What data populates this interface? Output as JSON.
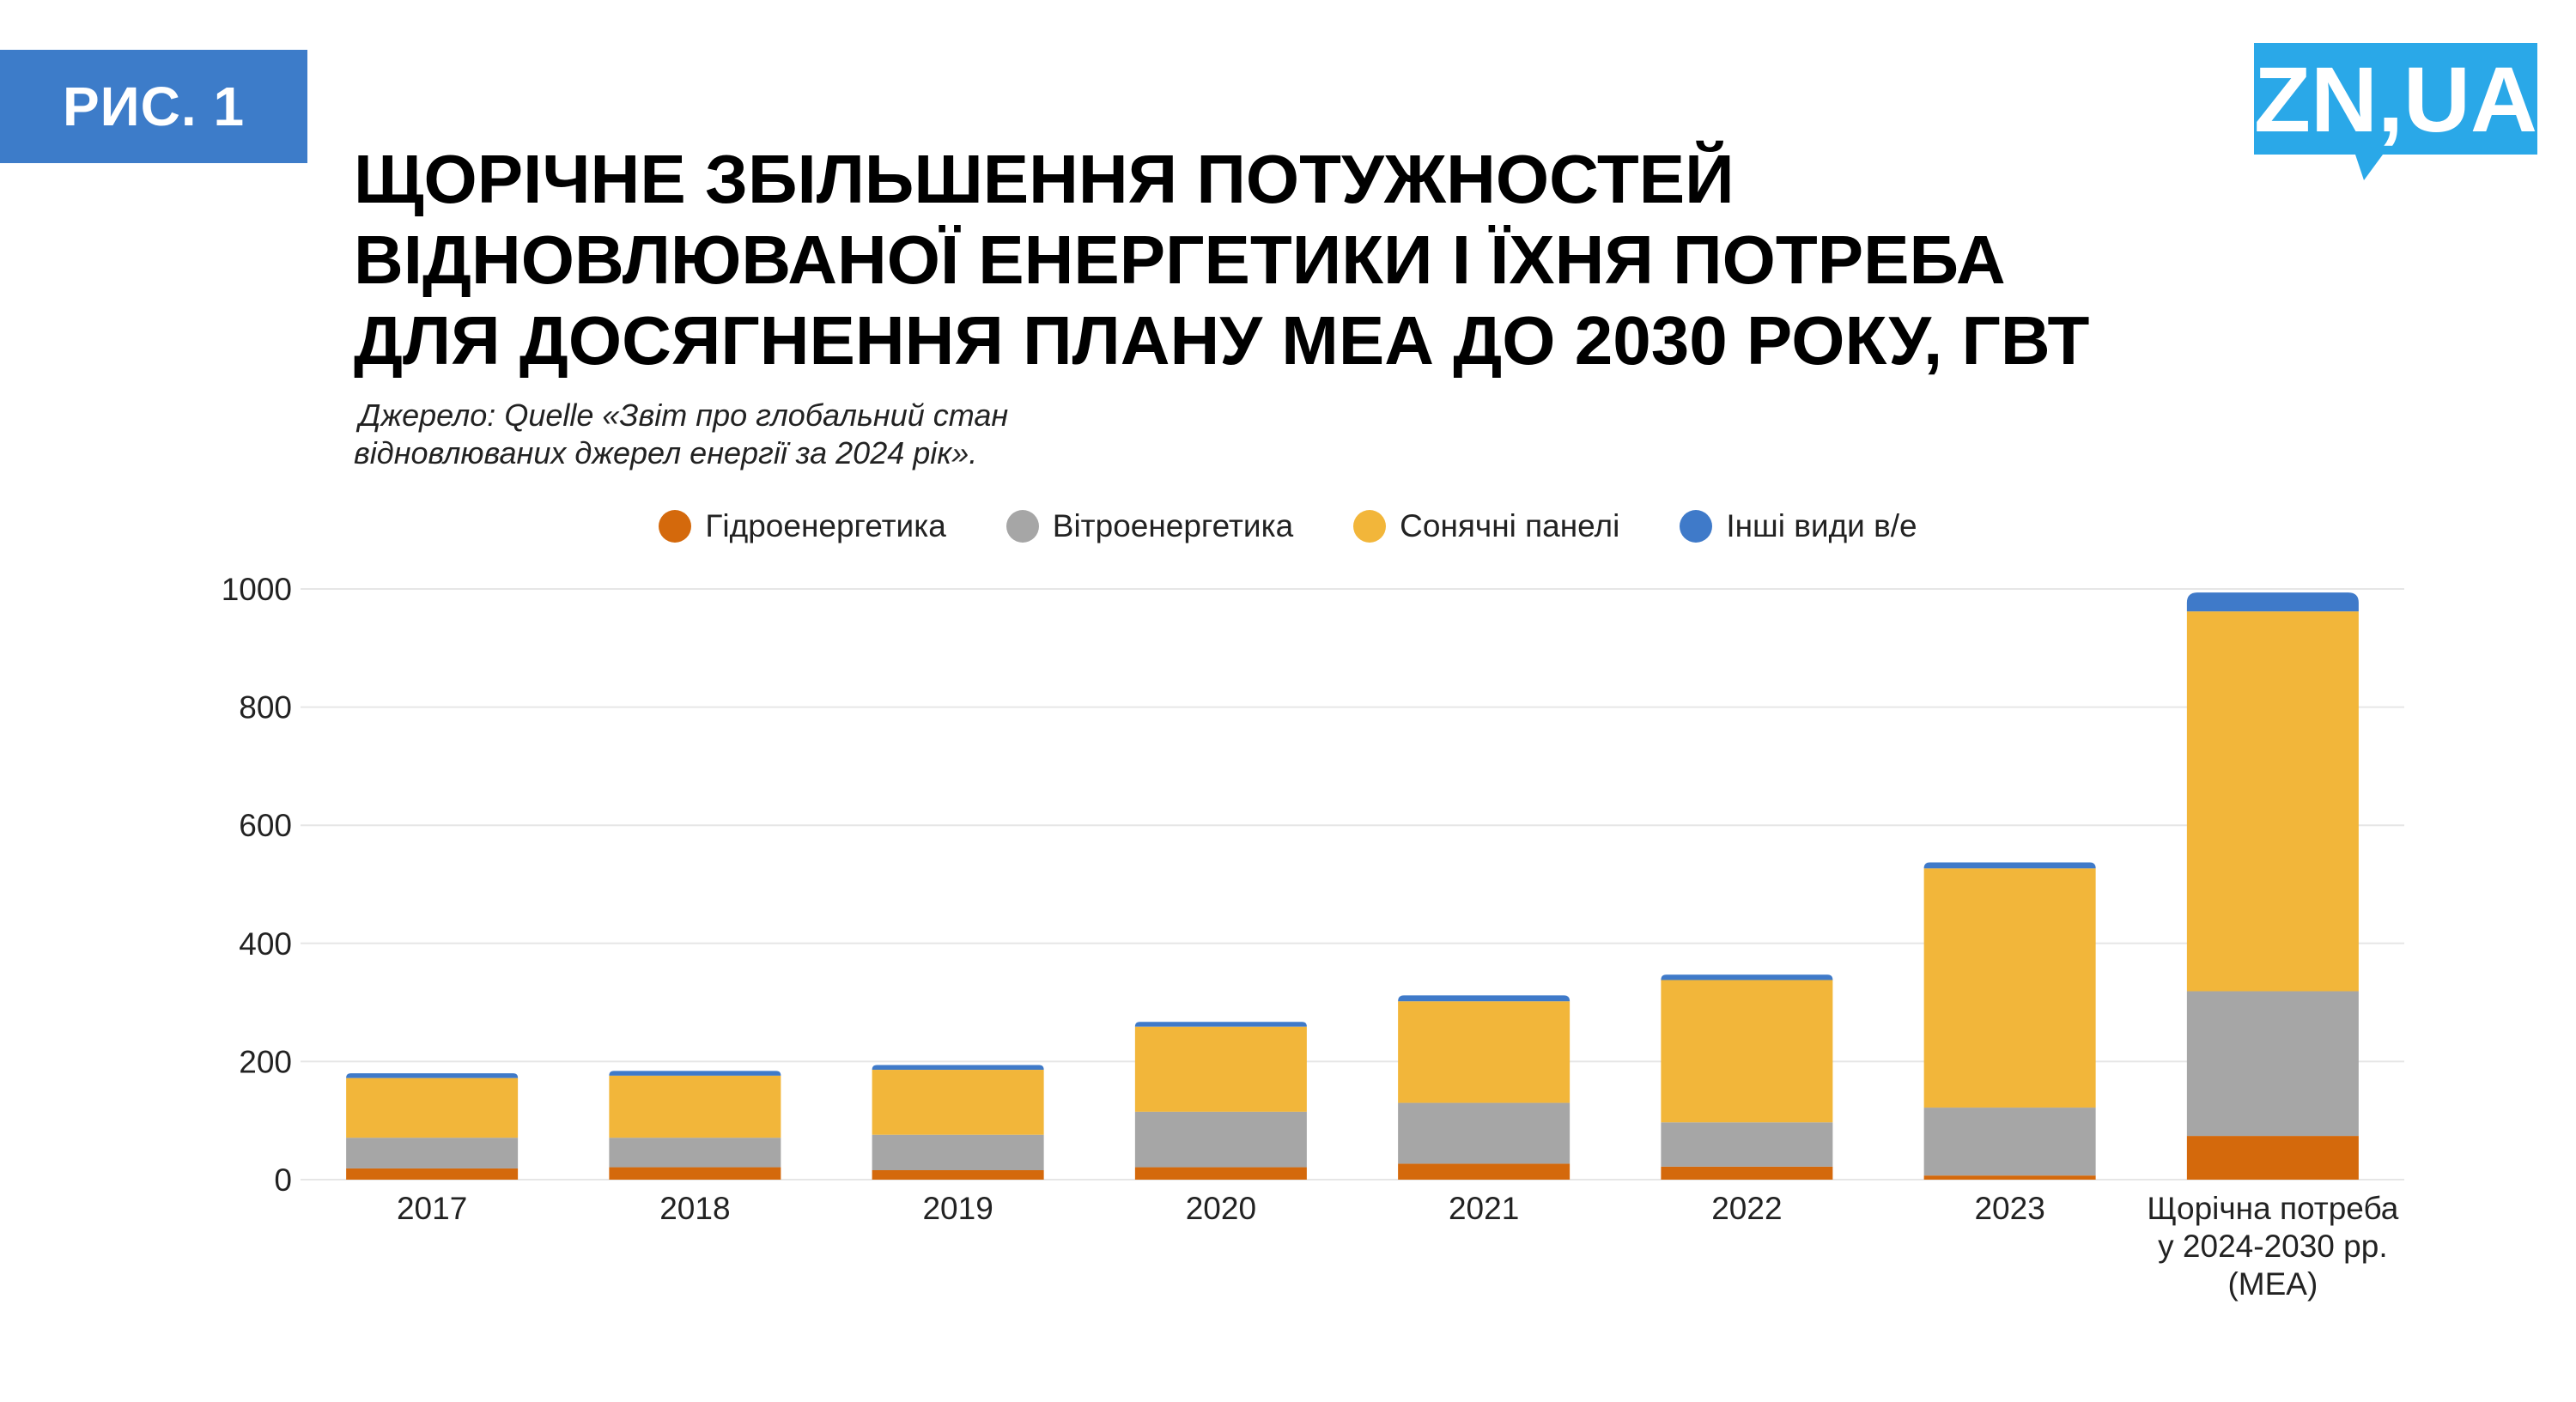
{
  "badge": "РИС. 1",
  "logo": {
    "text": "ZN,UA",
    "color": "#2aa8e8"
  },
  "title": {
    "line1": "ЩОРІЧНЕ ЗБІЛЬШЕННЯ ПОТУЖНОСТЕЙ",
    "line2": "ВІДНОВЛЮВАНОЇ ЕНЕРГЕТИКИ І ЇХНЯ ПОТРЕБА",
    "line3": "ДЛЯ ДОСЯГНЕННЯ ПЛАНУ МЕА ДО 2030 РОКУ, ГВТ"
  },
  "source": {
    "line1": "Джерело: Quelle «Звіт про глобальний стан",
    "line2": "відновлюваних джерел енергії за 2024 рік»."
  },
  "chart_data": {
    "type": "bar",
    "stacked": true,
    "categories": [
      "2017",
      "2018",
      "2019",
      "2020",
      "2021",
      "2022",
      "2023",
      "Щорічна потреба у 2024-2030 рр. (МЕА)"
    ],
    "category_label_lines": [
      [
        "2017"
      ],
      [
        "2018"
      ],
      [
        "2019"
      ],
      [
        "2020"
      ],
      [
        "2021"
      ],
      [
        "2022"
      ],
      [
        "2023"
      ],
      [
        "Щорічна потреба",
        "у 2024-2030 рр.",
        "(МЕА)"
      ]
    ],
    "series": [
      {
        "name": "Гідроенергетика",
        "color": "#d4690c",
        "values": [
          19,
          21,
          16,
          21,
          27,
          22,
          7,
          74
        ]
      },
      {
        "name": "Вітроенергетика",
        "color": "#a6a6a6",
        "values": [
          52,
          50,
          60,
          94,
          103,
          75,
          115,
          245
        ]
      },
      {
        "name": "Сонячні панелі",
        "color": "#f2b63a",
        "values": [
          101,
          105,
          110,
          144,
          172,
          241,
          405,
          643
        ]
      },
      {
        "name": "Інші види в/е",
        "color": "#3f7ac9",
        "values": [
          8,
          8,
          8,
          8,
          10,
          9,
          10,
          32
        ]
      }
    ],
    "ylim": [
      0,
      1000
    ],
    "yticks": [
      0,
      200,
      400,
      600,
      800,
      1000
    ],
    "grid": true,
    "legend_position": "top-center",
    "xlabel": "",
    "ylabel": ""
  }
}
